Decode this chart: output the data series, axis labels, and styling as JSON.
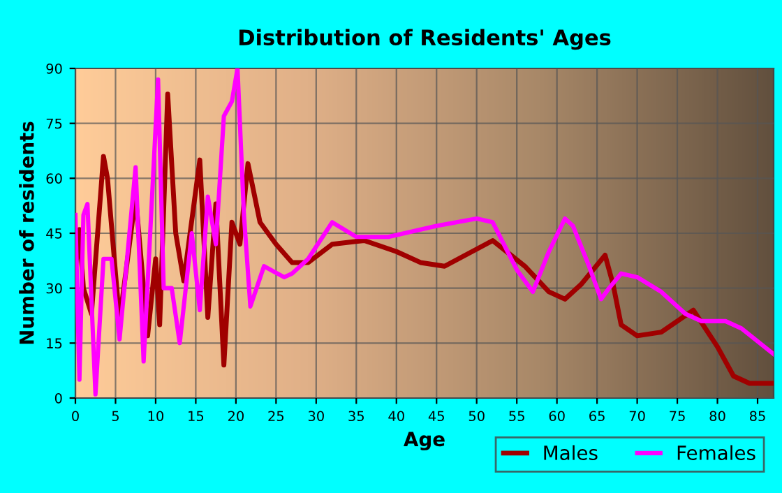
{
  "chart_data": {
    "type": "line",
    "title": "Distribution of Residents' Ages",
    "xlabel": "Age",
    "ylabel": "Number of residents",
    "xlim": [
      0,
      87
    ],
    "ylim": [
      0,
      90
    ],
    "xticks": [
      0,
      5,
      10,
      15,
      20,
      25,
      30,
      35,
      40,
      45,
      50,
      55,
      60,
      65,
      70,
      75,
      80,
      85
    ],
    "yticks": [
      0,
      15,
      30,
      45,
      60,
      75,
      90
    ],
    "grid": true,
    "legend": "bottom right",
    "marker": "none",
    "line_style": "solid",
    "series": [
      {
        "name": "Males",
        "color": "#a00000",
        "x": [
          0,
          0.5,
          1,
          2,
          3.5,
          4,
          5.5,
          7.5,
          8.5,
          9,
          10,
          10.5,
          11.5,
          12.5,
          13.5,
          15.5,
          16.5,
          17.5,
          18.5,
          19.5,
          20.5,
          21.5,
          23,
          25,
          27,
          29,
          32,
          36,
          40,
          43,
          46,
          52,
          56,
          59,
          61,
          63,
          66,
          67,
          68,
          70,
          73,
          77,
          80,
          82,
          84,
          87
        ],
        "values": [
          35,
          46,
          30,
          23,
          66,
          60,
          21,
          55,
          30,
          17,
          38,
          20,
          83,
          45,
          32,
          65,
          22,
          53,
          9,
          48,
          42,
          64,
          48,
          42,
          37,
          37,
          42,
          43,
          40,
          37,
          36,
          43,
          36,
          29,
          27,
          31,
          39,
          31,
          20,
          17,
          18,
          24,
          14,
          6,
          4,
          4
        ]
      },
      {
        "name": "Females",
        "color": "#ff00ff",
        "x": [
          0,
          0.5,
          1,
          1.5,
          2.5,
          3.5,
          4.5,
          5.5,
          7.5,
          8.5,
          10.3,
          11,
          12,
          13,
          14.5,
          15.5,
          16.5,
          17.5,
          18.5,
          19.5,
          20.2,
          21,
          21.8,
          23.5,
          26,
          27,
          29,
          32,
          35,
          39,
          45,
          50,
          52,
          55,
          57,
          59,
          61,
          62,
          64,
          65.5,
          66.5,
          68,
          70,
          73,
          76,
          78,
          81,
          83,
          87
        ],
        "values": [
          50,
          5,
          50,
          53,
          1,
          38,
          38,
          16,
          63,
          10,
          87,
          30,
          30,
          15,
          45,
          24,
          55,
          42,
          77,
          81,
          90,
          50,
          25,
          36,
          33,
          34,
          38,
          48,
          44,
          44,
          47,
          49,
          48,
          35,
          29,
          40,
          49,
          47,
          36,
          27,
          30,
          34,
          33,
          29,
          23,
          21,
          21,
          19,
          12
        ]
      }
    ]
  }
}
